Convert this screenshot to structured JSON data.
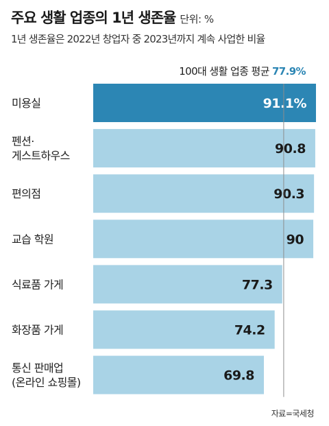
{
  "chart_data": {
    "type": "bar",
    "orientation": "horizontal",
    "title": "주요 생활 업종의 1년 생존율",
    "unit_label": "단위: %",
    "subtitle": "1년 생존율은 2022년 창업자 중 2023년까지 계속 사업한 비율",
    "reference": {
      "label": "100대 생활 업종 평균",
      "value": 77.9,
      "value_label": "77.9%"
    },
    "categories": [
      [
        "미용실"
      ],
      [
        "펜션·",
        "게스트하우스"
      ],
      [
        "편의점"
      ],
      [
        "교습 학원"
      ],
      [
        "식료품 가게"
      ],
      [
        "화장품 가게"
      ],
      [
        "통신 판매업",
        "(온라인 쇼핑몰)"
      ]
    ],
    "values": [
      91.1,
      90.8,
      90.3,
      90,
      77.3,
      74.2,
      69.8
    ],
    "value_labels": [
      "91.1%",
      "90.8",
      "90.3",
      "90",
      "77.3",
      "74.2",
      "69.8"
    ],
    "highlight_index": 0,
    "colors": {
      "highlight": "#2c86b4",
      "bar": "#a9d3e6",
      "reference_line": "#8c8c8c",
      "highlight_text": "#ffffff",
      "bar_text": "#1a1a1a"
    },
    "source": "자료=국세청"
  }
}
